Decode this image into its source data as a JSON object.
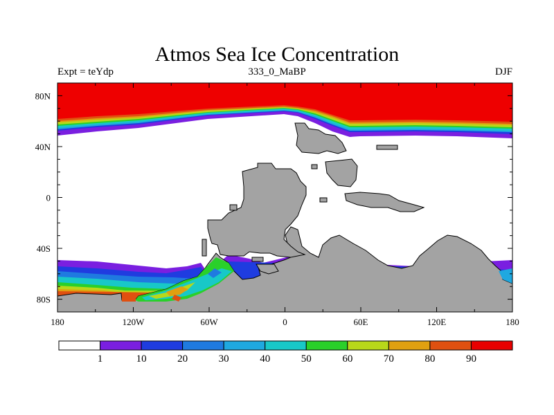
{
  "title": "Atmos Sea Ice Concentration",
  "left_label": "Expt = teYdp",
  "center_label": "333_0_MaBP",
  "right_label": "DJF",
  "lon_ticks": [
    {
      "lon": -180,
      "label": "180"
    },
    {
      "lon": -120,
      "label": "120W"
    },
    {
      "lon": -60,
      "label": "60W"
    },
    {
      "lon": 0,
      "label": "0"
    },
    {
      "lon": 60,
      "label": "60E"
    },
    {
      "lon": 120,
      "label": "120E"
    },
    {
      "lon": 180,
      "label": "180"
    }
  ],
  "lat_ticks": [
    {
      "lat": 80,
      "label": "80N"
    },
    {
      "lat": 40,
      "label": "40N"
    },
    {
      "lat": 0,
      "label": "0"
    },
    {
      "lat": -40,
      "label": "40S"
    },
    {
      "lat": -80,
      "label": "80S"
    }
  ],
  "colorbar": {
    "colors": [
      "#ffffff",
      "#7a1fe0",
      "#1f3ce0",
      "#1f7ae0",
      "#1fa8e0",
      "#18c8c8",
      "#2ad02a",
      "#b8d81a",
      "#e0a010",
      "#e05010",
      "#e80000"
    ],
    "labels": [
      "1",
      "10",
      "20",
      "30",
      "40",
      "50",
      "60",
      "70",
      "80",
      "90"
    ]
  },
  "land_color": "#a3a3a3",
  "ice_color": "#ee0000"
}
